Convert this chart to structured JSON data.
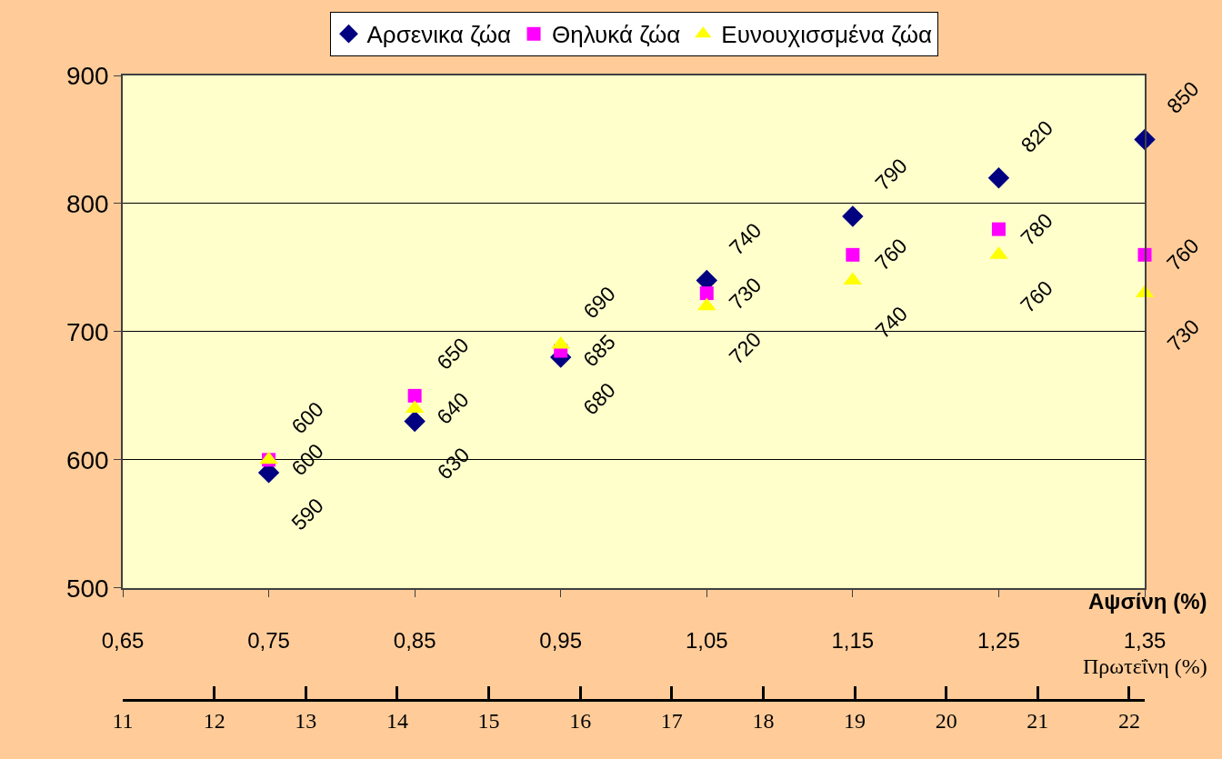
{
  "chart_data": {
    "type": "scatter",
    "xlabel": "Αψσίνη (%)",
    "x2label": "Πρωτεΐνη (%)",
    "x": [
      0.75,
      0.85,
      0.95,
      1.05,
      1.15,
      1.25,
      1.35
    ],
    "series": [
      {
        "name": "Αρσενικα ζώα",
        "color": "#000080",
        "marker": "diamond",
        "values": [
          590,
          630,
          680,
          740,
          790,
          820,
          850
        ]
      },
      {
        "name": "Θηλυκά ζώα",
        "color": "#ff00ff",
        "marker": "square",
        "values": [
          600,
          650,
          685,
          730,
          760,
          780,
          760
        ]
      },
      {
        "name": "Ευνουχισσμένα ζώα",
        "color": "#ffff00",
        "marker": "triangle",
        "values": [
          600,
          640,
          690,
          720,
          740,
          760,
          730
        ]
      }
    ],
    "xlim": [
      0.65,
      1.35
    ],
    "xticks": [
      {
        "value": 0.65,
        "label": "0,65"
      },
      {
        "value": 0.75,
        "label": "0,75"
      },
      {
        "value": 0.85,
        "label": "0,85"
      },
      {
        "value": 0.95,
        "label": "0,95"
      },
      {
        "value": 1.05,
        "label": "1,05"
      },
      {
        "value": 1.15,
        "label": "1,15"
      },
      {
        "value": 1.25,
        "label": "1,25"
      },
      {
        "value": 1.35,
        "label": "1,35"
      }
    ],
    "ylim": [
      500,
      900
    ],
    "yticks": [
      500,
      600,
      700,
      800,
      900
    ],
    "x2lim": [
      11,
      22.17
    ],
    "x2ticks": [
      11,
      12,
      13,
      14,
      15,
      16,
      17,
      18,
      19,
      20,
      21,
      22
    ],
    "data_labels": true,
    "grid": "y",
    "legend": "top"
  }
}
